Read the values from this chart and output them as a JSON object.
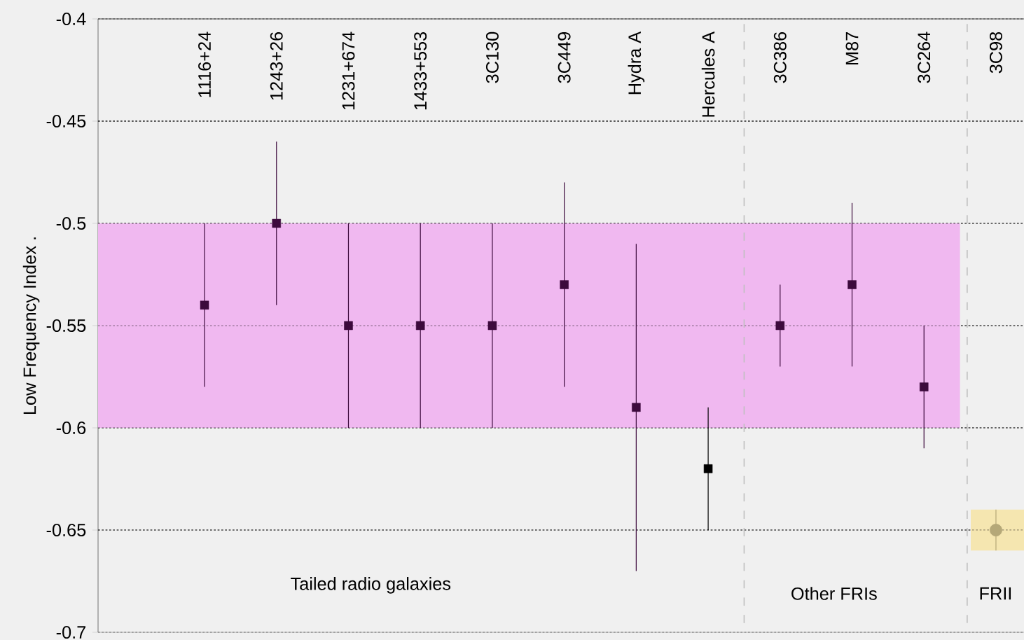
{
  "chart_data": {
    "type": "scatter",
    "ylabel": "Low Frequency Index .",
    "categories": [
      "1116+24",
      "1243+26",
      "1231+674",
      "1433+553",
      "3C130",
      "3C449",
      "Hydra A",
      "Hercules A",
      "3C386",
      "M87",
      "3C264",
      "3C98"
    ],
    "series": [
      {
        "marker": "square",
        "colors": [
          "#3c0a3c",
          "#3c0a3c",
          "#3c0a3c",
          "#3c0a3c",
          "#3c0a3c",
          "#3c0a3c",
          "#3c0a3c",
          "#000000",
          "#3c0a3c",
          "#3c0a3c",
          "#3c0a3c",
          null
        ],
        "values": [
          -0.54,
          -0.5,
          -0.55,
          -0.55,
          -0.55,
          -0.53,
          -0.59,
          -0.62,
          -0.55,
          -0.53,
          -0.58,
          null
        ],
        "errors": [
          [
            -0.58,
            -0.5
          ],
          [
            -0.54,
            -0.46
          ],
          [
            -0.6,
            -0.5
          ],
          [
            -0.6,
            -0.5
          ],
          [
            -0.6,
            -0.5
          ],
          [
            -0.58,
            -0.48
          ],
          [
            -0.67,
            -0.51
          ],
          [
            -0.65,
            -0.59
          ],
          [
            -0.57,
            -0.53
          ],
          [
            -0.57,
            -0.49
          ],
          [
            -0.61,
            -0.55
          ],
          null
        ]
      },
      {
        "marker": "circle",
        "color": "#b5a878",
        "values": [
          null,
          null,
          null,
          null,
          null,
          null,
          null,
          null,
          null,
          null,
          null,
          -0.65
        ],
        "errors": [
          null,
          null,
          null,
          null,
          null,
          null,
          null,
          null,
          null,
          null,
          null,
          [
            -0.66,
            -0.64
          ]
        ]
      }
    ],
    "ylim": [
      -0.7,
      -0.4
    ],
    "yticks": [
      -0.7,
      -0.65,
      -0.6,
      -0.55,
      -0.5,
      -0.45,
      -0.4
    ],
    "grid": "y",
    "bands": [
      {
        "axis": "y",
        "from": -0.6,
        "to": -0.5,
        "color": "#f0b8f0"
      },
      {
        "axis": "y",
        "from": -0.66,
        "to": -0.64,
        "color": "#f5e6b0"
      }
    ],
    "annotations": [
      "Tailed radio galaxies",
      "Other FRIs",
      "FRII"
    ]
  }
}
